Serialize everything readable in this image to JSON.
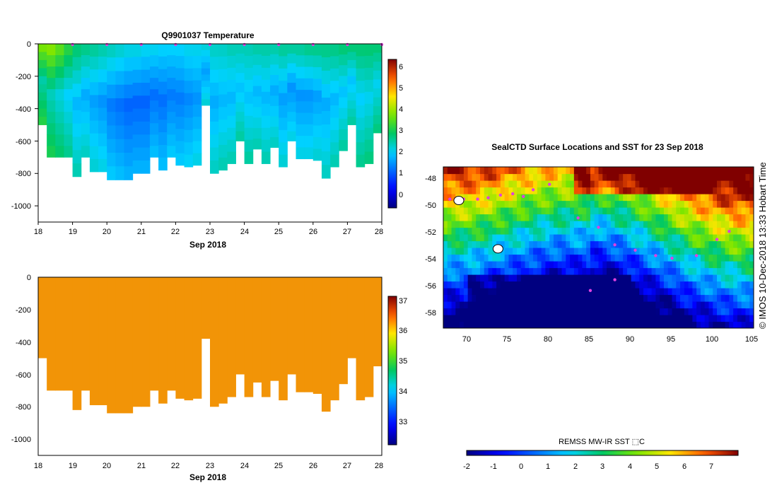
{
  "chart_data": [
    {
      "type": "heatmap",
      "title": "Q9901037  Temperature",
      "xlabel": "Sep 2018",
      "ylabel": "",
      "xlim": [
        18,
        28
      ],
      "ylim": [
        -1100,
        0
      ],
      "x_ticks": [
        "18",
        "19",
        "20",
        "21",
        "22",
        "23",
        "24",
        "25",
        "26",
        "27",
        "28"
      ],
      "y_ticks": [
        "0",
        "-200",
        "-400",
        "-600",
        "-800",
        "-1000"
      ],
      "colorbar": {
        "min": -0.5,
        "max": 6.5,
        "ticks": [
          "6",
          "5",
          "4",
          "3",
          "2",
          "1",
          "0"
        ]
      },
      "profile_markers_day": [
        19,
        20,
        21,
        22,
        23,
        24,
        25,
        26,
        27,
        28
      ],
      "profiles": {
        "day": [
          18.0,
          18.25,
          18.5,
          18.75,
          19.0,
          19.25,
          19.5,
          19.75,
          20.0,
          20.25,
          20.5,
          20.75,
          21.0,
          21.25,
          21.5,
          21.75,
          22.0,
          22.25,
          22.5,
          22.75,
          23.0,
          23.25,
          23.5,
          23.75,
          24.0,
          24.25,
          24.5,
          24.75,
          25.0,
          25.25,
          25.5,
          25.75,
          26.0,
          26.25,
          26.5,
          26.75,
          27.0,
          27.25,
          27.5,
          27.75,
          28.0
        ],
        "max_depth": [
          -500,
          -700,
          -700,
          -700,
          -820,
          -700,
          -790,
          -790,
          -840,
          -840,
          -840,
          -800,
          -800,
          -700,
          -780,
          -700,
          -750,
          -760,
          -750,
          -380,
          -800,
          -780,
          -740,
          -600,
          -740,
          -650,
          -740,
          -640,
          -760,
          -600,
          -710,
          -710,
          -720,
          -830,
          -760,
          -660,
          -500,
          -760,
          -740,
          -550,
          -550
        ],
        "surface_temp": [
          4.0,
          4.1,
          3.8,
          3.4,
          3.0,
          2.9,
          2.8,
          2.7,
          2.6,
          2.5,
          2.4,
          2.4,
          2.3,
          2.3,
          2.2,
          2.2,
          2.2,
          2.3,
          2.3,
          2.4,
          2.5,
          2.5,
          2.6,
          2.6,
          2.6,
          2.7,
          2.7,
          2.7,
          2.8,
          2.8,
          2.8,
          2.9,
          2.9,
          2.9,
          2.9,
          3.0,
          3.0,
          3.0,
          3.0,
          3.0,
          3.0
        ],
        "min_temp": [
          2.6,
          2.5,
          2.3,
          2.1,
          1.9,
          1.8,
          1.7,
          1.6,
          1.4,
          1.3,
          1.2,
          1.2,
          1.2,
          1.3,
          1.3,
          1.4,
          1.4,
          1.5,
          1.6,
          1.7,
          1.8,
          1.9,
          1.9,
          2.0,
          2.0,
          1.9,
          1.9,
          1.8,
          1.7,
          1.6,
          1.6,
          1.6,
          1.7,
          1.8,
          1.9,
          2.0,
          2.0,
          2.1,
          2.2,
          2.2,
          2.3
        ]
      }
    },
    {
      "type": "heatmap",
      "title": "",
      "xlabel": "Sep 2018",
      "ylabel": "",
      "xlim": [
        18,
        28
      ],
      "ylim": [
        -1100,
        0
      ],
      "x_ticks": [
        "18",
        "19",
        "20",
        "21",
        "22",
        "23",
        "24",
        "25",
        "26",
        "27",
        "28"
      ],
      "y_ticks": [
        "0",
        "-200",
        "-400",
        "-600",
        "-800",
        "-1000"
      ],
      "colorbar": {
        "min": 32.2,
        "max": 37.2,
        "ticks": [
          "37",
          "36",
          "35",
          "34",
          "33"
        ]
      },
      "fill_value": 35.9,
      "fill_color": "#f29407"
    },
    {
      "type": "heatmap",
      "title": "SealCTD Surface Locations and SST for 23 Sep 2018",
      "xlabel": "",
      "ylabel": "",
      "xlim": [
        67,
        105
      ],
      "ylim": [
        -59,
        -47
      ],
      "x_ticks": [
        "70",
        "75",
        "80",
        "85",
        "90",
        "95",
        "100",
        "105"
      ],
      "y_ticks": [
        "-48",
        "-50",
        "-52",
        "-54",
        "-56",
        "-58"
      ],
      "side_label": "© IMOS 10-Dec-2018 13:33 Hobart Time",
      "colorbar": {
        "label": "REMSS MW-IR SST ⬚C",
        "min": -2,
        "max": 8,
        "ticks": [
          "-2",
          "-1",
          "0",
          "1",
          "2",
          "3",
          "4",
          "5",
          "6",
          "7"
        ]
      },
      "track_points": [
        [
          67.8,
          -49.4
        ],
        [
          69.5,
          -49.4
        ],
        [
          71.2,
          -49.4
        ],
        [
          72.5,
          -49.3
        ],
        [
          74.0,
          -49.1
        ],
        [
          75.5,
          -49.0
        ],
        [
          76.8,
          -49.2
        ],
        [
          78.0,
          -48.7
        ],
        [
          80.0,
          -48.3
        ],
        [
          83.5,
          -50.8
        ],
        [
          86.0,
          -51.5
        ],
        [
          88.0,
          -52.8
        ],
        [
          90.5,
          -53.2
        ],
        [
          93.0,
          -53.6
        ],
        [
          95.0,
          -53.8
        ],
        [
          98.0,
          -53.6
        ],
        [
          100.5,
          -52.4
        ],
        [
          102.0,
          -51.8
        ],
        [
          88.0,
          -55.4
        ],
        [
          85.0,
          -56.2
        ]
      ],
      "islands": [
        [
          68.9,
          -49.5
        ],
        [
          73.7,
          -53.1
        ]
      ]
    }
  ]
}
